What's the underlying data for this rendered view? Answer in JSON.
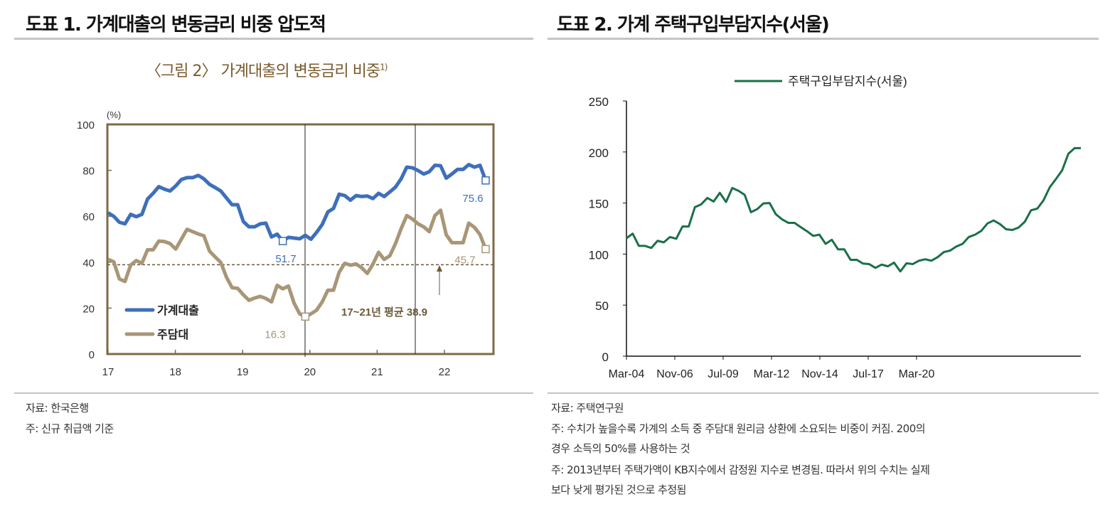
{
  "left": {
    "header": "도표 1. 가계대출의 변동금리 비중 압도적",
    "figure_title": "〈그림 2〉 가계대출의 변동금리 비중",
    "figure_title_sup": "1)",
    "source": "자료:  한국은행",
    "note": "주:  신규 취급액 기준"
  },
  "right": {
    "header": "도표 2. 가계 주택구입부담지수(서울)",
    "source": "자료:  주택연구원",
    "note1": "주:  수치가 높을수록 가계의 소득 중 주담대 원리금 상환에 소요되는 비중이 커짐. 200의",
    "note1b": "경우 소득의 50%를 사용하는 것",
    "note2": "주:  2013년부터 주택가액이 KB지수에서 감정원 지수로 변경됨. 따라서 위의 수치는 실제",
    "note2b": "보다 낮게 평가된 것으로 추정됨"
  },
  "chart_data": [
    {
      "type": "line",
      "title": "〈그림 2〉 가계대출의 변동금리 비중 1)",
      "ylabel": "(%)",
      "ylim": [
        0,
        100
      ],
      "yticks": [
        "0",
        "20",
        "40",
        "60",
        "80",
        "100"
      ],
      "xticks": [
        "17",
        "18",
        "19",
        "20",
        "21",
        "22"
      ],
      "grid": false,
      "legend": "bottom-left",
      "series": [
        {
          "name": "가계대출",
          "color": "#3e6fba",
          "values": [
            61.5,
            60,
            57.4,
            56.7,
            60.8,
            59.8,
            60.8,
            67.5,
            70,
            72.9,
            71.8,
            71,
            73.2,
            76,
            76.8,
            76.8,
            77.8,
            76.3,
            73.9,
            72.5,
            71,
            68,
            65,
            65,
            57.7,
            55.4,
            55.4,
            56.7,
            57,
            51,
            52.2,
            49.2,
            50.8,
            50.5,
            50.2,
            51.7,
            50,
            53,
            56.4,
            61.9,
            63.4,
            69.6,
            69,
            67,
            69,
            68.6,
            68.8,
            67.7,
            70,
            68.6,
            70.6,
            72.7,
            76.3,
            81.4,
            81.1,
            79.9,
            78.4,
            79.4,
            82.2,
            82,
            76.6,
            78.4,
            80.4,
            80.4,
            82.5,
            81.4,
            82.2,
            75.6
          ]
        },
        {
          "name": "주담대",
          "color": "#a89677",
          "values": [
            41.2,
            40.2,
            32.7,
            31.6,
            38.7,
            40.7,
            39.5,
            45.4,
            45.4,
            49.2,
            49,
            48.1,
            45.7,
            50,
            54.3,
            53.3,
            52.3,
            51.5,
            44.8,
            42.3,
            39.9,
            33.5,
            28.9,
            28.6,
            25.8,
            23.4,
            24.4,
            25.1,
            24.2,
            22.7,
            29.9,
            28.4,
            29.6,
            22.2,
            17.5,
            16.3,
            17.5,
            19.1,
            22.7,
            27.8,
            27.8,
            35.6,
            39.5,
            38.7,
            39.2,
            37.6,
            35.1,
            39.2,
            44.3,
            41.2,
            42.8,
            48.1,
            54.6,
            60.3,
            58.8,
            56.7,
            55.4,
            53.3,
            60.3,
            62.6,
            52,
            48.5,
            48.5,
            48.5,
            57,
            55.2,
            52,
            45.7
          ]
        }
      ],
      "annotations": {
        "blue_min": "51.7",
        "blue_last": "75.6",
        "tan_min": "16.3",
        "tan_last": "45.7",
        "average_label": "17~21년 평균 38.9",
        "average_value": 38.9
      },
      "colors": {
        "frame": "#7d6a46",
        "average_line": "#6b5a3a"
      }
    },
    {
      "type": "line",
      "ylim": [
        0,
        250
      ],
      "yticks": [
        "0",
        "50",
        "100",
        "150",
        "200",
        "250"
      ],
      "xticks": [
        "Mar-04",
        "Nov-06",
        "Jul-09",
        "Mar-12",
        "Nov-14",
        "Jul-17",
        "Mar-20"
      ],
      "grid": false,
      "legend": "top",
      "series": [
        {
          "name": "주택구입부담지수(서울)",
          "color": "#1a7048",
          "values": [
            115.5,
            120,
            108,
            108,
            106,
            113,
            111.5,
            116.7,
            115,
            127,
            127,
            146,
            148.7,
            155,
            151.5,
            160,
            151,
            164.7,
            162,
            158,
            141,
            144,
            149.6,
            150,
            139,
            134,
            130.6,
            130.6,
            126.4,
            122.4,
            117.8,
            119,
            110,
            114,
            104.6,
            104.6,
            94.4,
            94.4,
            90.7,
            90.2,
            86.5,
            89.7,
            88,
            91.6,
            83,
            91,
            90.2,
            93.5,
            94.9,
            93.5,
            97,
            102,
            103.4,
            107.4,
            110,
            116.7,
            119,
            122.7,
            130,
            132.9,
            129.4,
            124.3,
            123.6,
            126,
            131.7,
            142.9,
            144.5,
            152.6,
            165.3,
            173.5,
            182,
            198.3,
            203.8,
            203.8
          ]
        }
      ]
    }
  ]
}
